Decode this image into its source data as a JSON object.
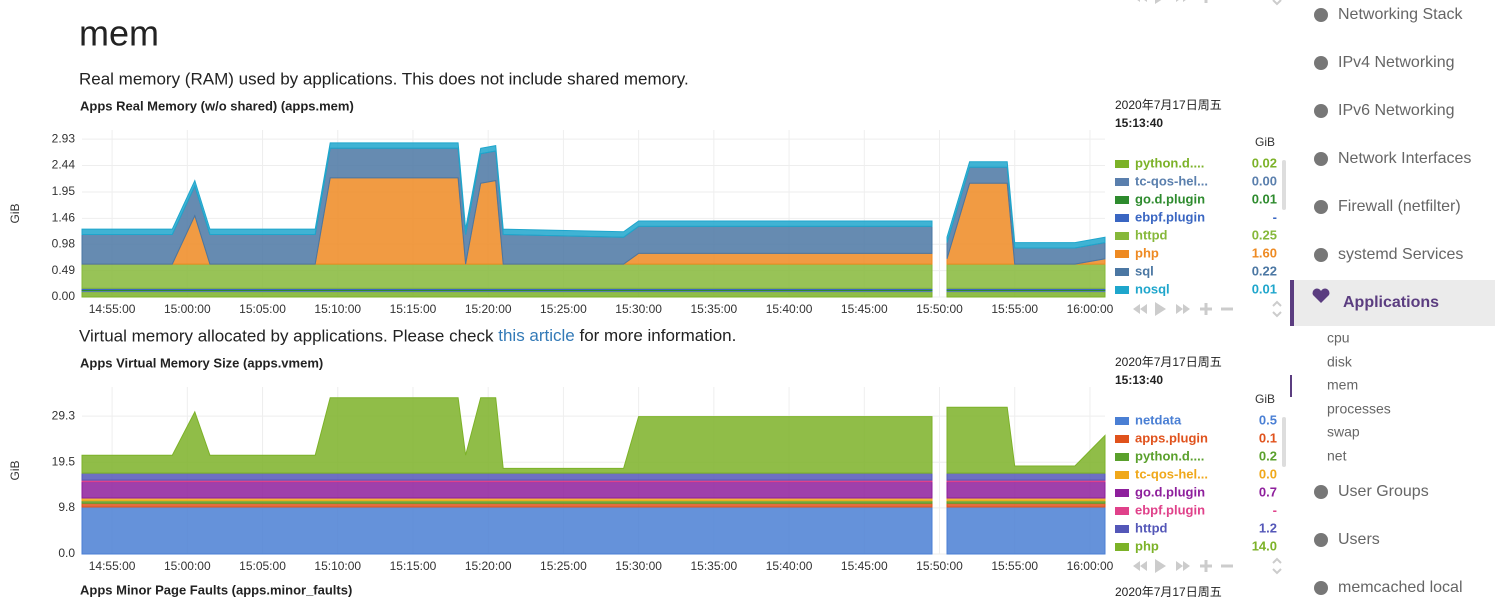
{
  "page": {
    "heading": "mem",
    "previous_xticks": [
      "14:55:00",
      "15:00:00",
      "15:05:00",
      "15:10:00",
      "15:15:00",
      "15:20:00",
      "15:25:00",
      "15:30:00",
      "15:35:00",
      "15:40:00",
      "15:45:00",
      "15:50:00",
      "15:55:00",
      "16:00:00"
    ]
  },
  "chart_data": [
    {
      "type": "area",
      "stacked": true,
      "description": "Real memory (RAM) used by applications. This does not include shared memory.",
      "title": "Apps Real Memory (w/o shared) (apps.mem)",
      "date": "2020年7月17日周五",
      "time": "15:13:40",
      "unit": "GiB",
      "ylabel": "GiB",
      "xlim": [
        "14:53:00",
        "16:01:00"
      ],
      "xticks": [
        "14:55:00",
        "15:00:00",
        "15:05:00",
        "15:10:00",
        "15:15:00",
        "15:20:00",
        "15:25:00",
        "15:30:00",
        "15:35:00",
        "15:40:00",
        "15:45:00",
        "15:50:00",
        "15:55:00",
        "16:00:00"
      ],
      "ylim": [
        0,
        3.1
      ],
      "yticks": [
        {
          "value": 0,
          "label": "0.00"
        },
        0.49,
        0.98,
        1.46,
        1.95,
        2.44,
        2.93
      ],
      "grid": true,
      "x": [
        "14:53:00",
        "14:59:00",
        "15:00:30",
        "15:01:30",
        "15:08:30",
        "15:09:30",
        "15:18:00",
        "15:18:30",
        "15:19:30",
        "15:20:30",
        "15:21:00",
        "15:29:00",
        "15:30:00",
        "15:40:00",
        "15:49:30",
        "15:50:00",
        "15:50:30",
        "15:52:00",
        "15:54:30",
        "15:55:00",
        "15:59:00",
        "16:01:00"
      ],
      "series": [
        {
          "name": "python.d....",
          "color": "#7cb228",
          "legend_value": "0.02",
          "values": [
            0.1,
            0.1,
            0.1,
            0.1,
            0.1,
            0.1,
            0.1,
            0.1,
            0.1,
            0.1,
            0.1,
            0.1,
            0.1,
            0.1,
            0.1,
            null,
            0.1,
            0.1,
            0.1,
            0.1,
            0.1,
            0.1
          ]
        },
        {
          "name": "tc-qos-hel...",
          "color": "#5a7fad",
          "legend_value": "0.00",
          "values": [
            0.02,
            0.02,
            0.02,
            0.02,
            0.02,
            0.02,
            0.02,
            0.02,
            0.02,
            0.02,
            0.02,
            0.02,
            0.02,
            0.02,
            0.02,
            null,
            0.02,
            0.02,
            0.02,
            0.02,
            0.02,
            0.02
          ]
        },
        {
          "name": "go.d.plugin",
          "color": "#2e8b2e",
          "legend_value": "0.01",
          "values": [
            0.02,
            0.02,
            0.02,
            0.02,
            0.02,
            0.02,
            0.02,
            0.02,
            0.02,
            0.02,
            0.02,
            0.02,
            0.02,
            0.02,
            0.02,
            null,
            0.02,
            0.02,
            0.02,
            0.02,
            0.02,
            0.02
          ]
        },
        {
          "name": "ebpf.plugin",
          "color": "#3a66c2",
          "legend_value": "-",
          "values": [
            0.02,
            0.02,
            0.02,
            0.02,
            0.02,
            0.02,
            0.02,
            0.02,
            0.02,
            0.02,
            0.02,
            0.02,
            0.02,
            0.02,
            0.02,
            null,
            0.02,
            0.02,
            0.02,
            0.02,
            0.02,
            0.02
          ]
        },
        {
          "name": "httpd",
          "color": "#86b83a",
          "legend_value": "0.25",
          "values": [
            0.45,
            0.45,
            0.45,
            0.45,
            0.45,
            0.45,
            0.45,
            0.45,
            0.45,
            0.45,
            0.45,
            0.45,
            0.45,
            0.45,
            0.45,
            null,
            0.45,
            0.45,
            0.45,
            0.45,
            0.45,
            0.45
          ]
        },
        {
          "name": "php",
          "color": "#ee8a22",
          "legend_value": "1.60",
          "values": [
            0,
            0,
            0.9,
            0,
            0,
            1.6,
            1.6,
            0,
            1.5,
            1.55,
            0,
            0,
            0.2,
            0.2,
            0.2,
            null,
            0.1,
            1.5,
            1.5,
            0,
            0,
            0.1
          ]
        },
        {
          "name": "sql",
          "color": "#4b77a3",
          "legend_value": "0.22",
          "values": [
            0.55,
            0.55,
            0.55,
            0.55,
            0.55,
            0.55,
            0.55,
            0.55,
            0.55,
            0.55,
            0.55,
            0.5,
            0.5,
            0.5,
            0.5,
            null,
            0.3,
            0.3,
            0.3,
            0.3,
            0.3,
            0.3
          ]
        },
        {
          "name": "nosql",
          "color": "#1fa6cc",
          "legend_value": "0.01",
          "values": [
            0.1,
            0.1,
            0.1,
            0.1,
            0.1,
            0.1,
            0.1,
            0.1,
            0.1,
            0.1,
            0.1,
            0.1,
            0.1,
            0.1,
            0.1,
            null,
            0.1,
            0.1,
            0.1,
            0.1,
            0.1,
            0.1
          ]
        }
      ]
    },
    {
      "type": "area",
      "stacked": true,
      "description": "Virtual memory allocated by applications. Please check ",
      "description_link": "this article",
      "description_after": " for more information.",
      "title": "Apps Virtual Memory Size (apps.vmem)",
      "date": "2020年7月17日周五",
      "time": "15:13:40",
      "unit": "GiB",
      "ylabel": "GiB",
      "xlim": [
        "14:53:00",
        "16:01:00"
      ],
      "xticks": [
        "14:55:00",
        "15:00:00",
        "15:05:00",
        "15:10:00",
        "15:15:00",
        "15:20:00",
        "15:25:00",
        "15:30:00",
        "15:35:00",
        "15:40:00",
        "15:45:00",
        "15:50:00",
        "15:55:00",
        "16:00:00"
      ],
      "ylim": [
        0,
        35.5
      ],
      "yticks": [
        {
          "value": 0,
          "label": "0.0"
        },
        9.8,
        19.5,
        29.3
      ],
      "grid": true,
      "x": [
        "14:53:00",
        "14:59:00",
        "15:00:30",
        "15:01:30",
        "15:08:30",
        "15:09:30",
        "15:18:00",
        "15:18:30",
        "15:19:30",
        "15:20:30",
        "15:21:00",
        "15:29:00",
        "15:30:00",
        "15:40:00",
        "15:49:30",
        "15:50:00",
        "15:50:30",
        "15:52:00",
        "15:54:30",
        "15:55:00",
        "15:59:00",
        "16:01:00"
      ],
      "series": [
        {
          "name": "netdata",
          "color": "#4a7fd4",
          "legend_value": "0.5",
          "values": [
            10,
            10,
            10,
            10,
            10,
            10,
            10,
            10,
            10,
            10,
            10,
            10,
            10,
            10,
            10,
            null,
            10,
            10,
            10,
            10,
            10,
            10
          ]
        },
        {
          "name": "apps.plugin",
          "color": "#e0521c",
          "legend_value": "0.1",
          "values": [
            0.8,
            0.8,
            0.8,
            0.8,
            0.8,
            0.8,
            0.8,
            0.8,
            0.8,
            0.8,
            0.8,
            0.8,
            0.8,
            0.8,
            0.8,
            null,
            0.8,
            0.8,
            0.8,
            0.8,
            0.8,
            0.8
          ]
        },
        {
          "name": "python.d....",
          "color": "#5aa02c",
          "legend_value": "0.2",
          "values": [
            0.5,
            0.5,
            0.5,
            0.5,
            0.5,
            0.5,
            0.5,
            0.5,
            0.5,
            0.5,
            0.5,
            0.5,
            0.5,
            0.5,
            0.5,
            null,
            0.5,
            0.5,
            0.5,
            0.5,
            0.5,
            0.5
          ]
        },
        {
          "name": "tc-qos-hel...",
          "color": "#f0a81a",
          "legend_value": "0.0",
          "values": [
            0.6,
            0.6,
            0.6,
            0.6,
            0.6,
            0.6,
            0.6,
            0.6,
            0.6,
            0.6,
            0.6,
            0.6,
            0.6,
            0.6,
            0.6,
            null,
            0.6,
            0.6,
            0.6,
            0.6,
            0.6,
            0.6
          ]
        },
        {
          "name": "go.d.plugin",
          "color": "#8e1f9c",
          "legend_value": "0.7",
          "values": [
            3.5,
            3.5,
            3.5,
            3.5,
            3.5,
            3.5,
            3.5,
            3.5,
            3.5,
            3.5,
            3.5,
            3.5,
            3.5,
            3.5,
            3.5,
            null,
            3.5,
            3.5,
            3.5,
            3.5,
            3.5,
            3.5
          ]
        },
        {
          "name": "ebpf.plugin",
          "color": "#e0418a",
          "legend_value": "-",
          "values": [
            0.3,
            0.3,
            0.3,
            0.3,
            0.3,
            0.3,
            0.3,
            0.3,
            0.3,
            0.3,
            0.3,
            0.3,
            0.3,
            0.3,
            0.3,
            null,
            0.3,
            0.3,
            0.3,
            0.3,
            0.3,
            0.3
          ]
        },
        {
          "name": "httpd",
          "color": "#5457b8",
          "legend_value": "1.2",
          "values": [
            1.5,
            1.5,
            1.5,
            1.5,
            1.5,
            1.5,
            1.5,
            1.5,
            1.5,
            1.5,
            1.5,
            1.5,
            1.5,
            1.5,
            1.5,
            null,
            1.5,
            1.5,
            1.5,
            1.5,
            1.5,
            1.5
          ]
        },
        {
          "name": "php",
          "color": "#7cb228",
          "legend_value": "14.0",
          "values": [
            3.8,
            3.8,
            13,
            3.8,
            3.8,
            16,
            16,
            3.8,
            16,
            16,
            1,
            1,
            12,
            12,
            12,
            null,
            14,
            14,
            14,
            1.5,
            1.5,
            8
          ]
        }
      ]
    }
  ],
  "next_chart": {
    "title": "Apps Minor Page Faults (apps.minor_faults)",
    "date": "2020年7月17日周五"
  },
  "sidebar": {
    "items": [
      "Networking Stack",
      "IPv4 Networking",
      "IPv6 Networking",
      "Network Interfaces",
      "Firewall (netfilter)",
      "systemd Services"
    ],
    "active": "Applications",
    "subitems": [
      "cpu",
      "disk",
      "mem",
      "processes",
      "swap",
      "net"
    ],
    "items_after": [
      "User Groups",
      "Users",
      "memcached local"
    ]
  }
}
